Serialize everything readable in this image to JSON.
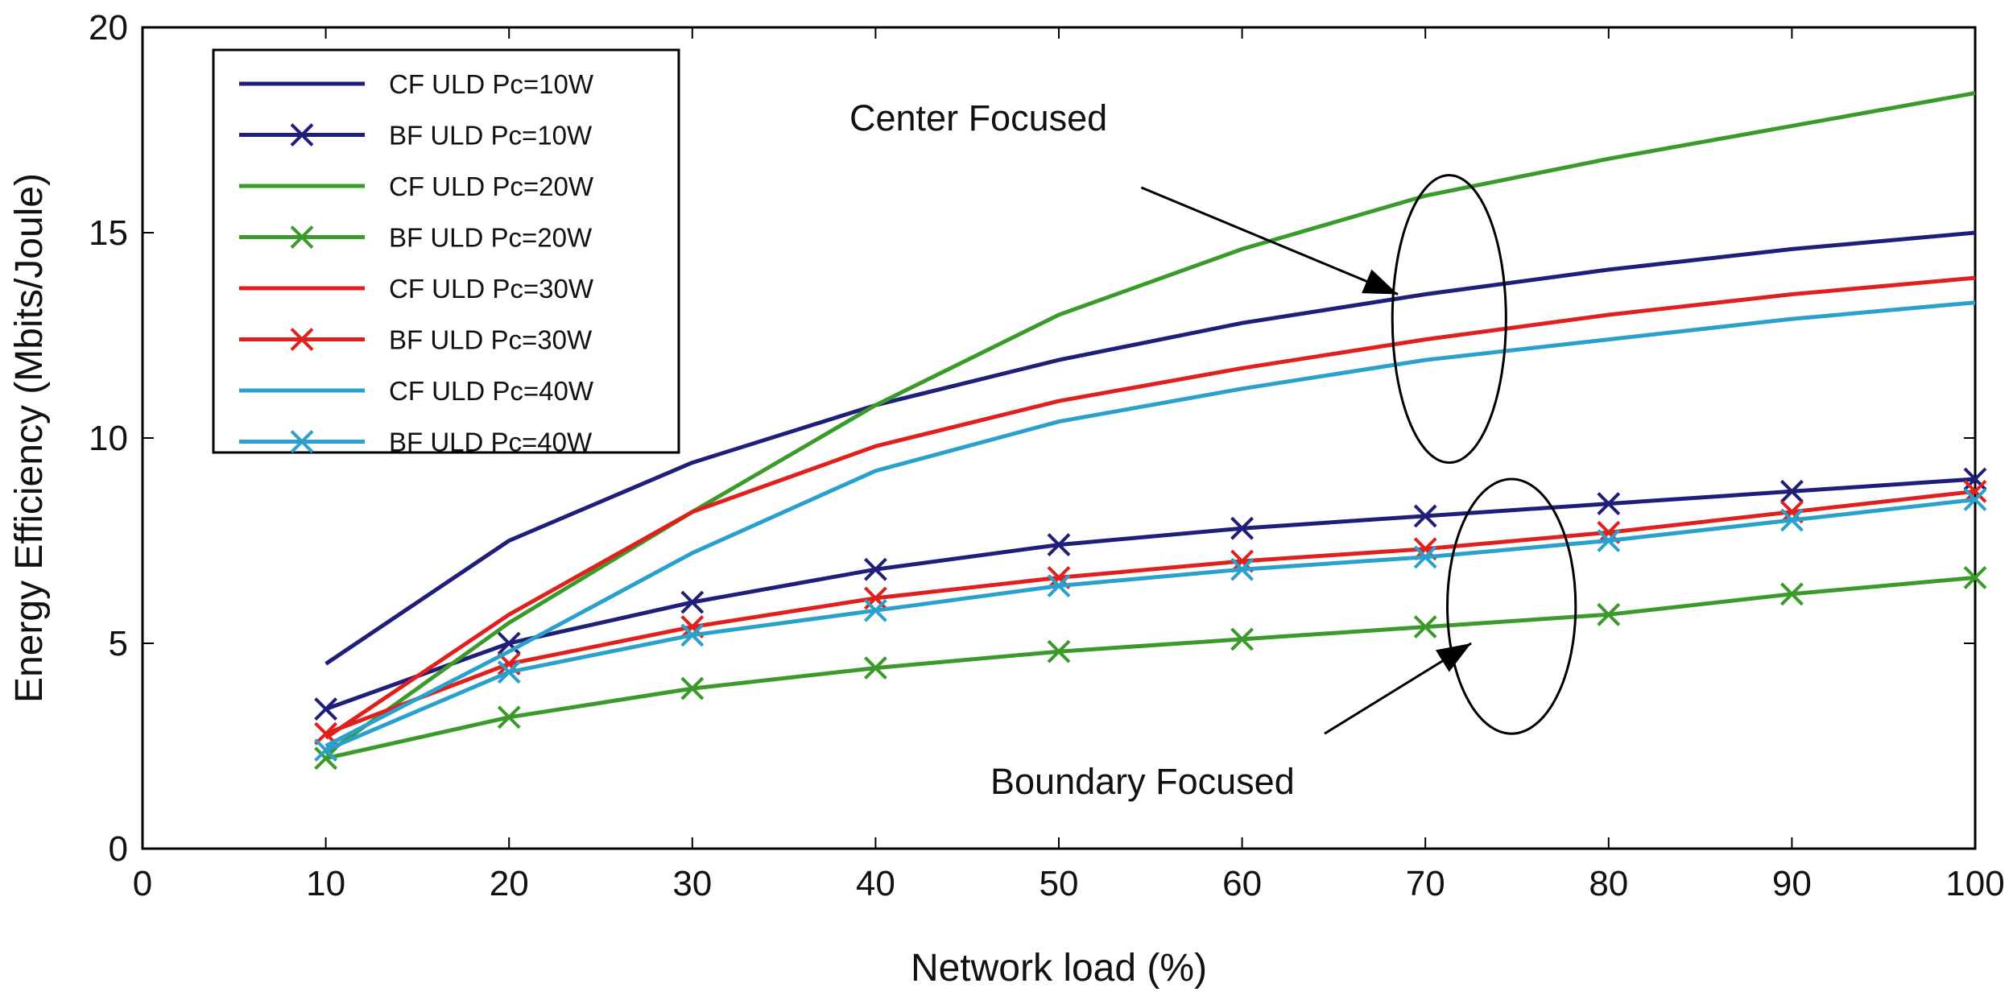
{
  "chart_data": {
    "type": "line",
    "xlabel": "Network load (%)",
    "ylabel": "Energy Efficiency (Mbits/Joule)",
    "xlim": [
      0,
      100
    ],
    "ylim": [
      0,
      20
    ],
    "xticks": [
      0,
      10,
      20,
      30,
      40,
      50,
      60,
      70,
      80,
      90,
      100
    ],
    "yticks": [
      0,
      5,
      10,
      15,
      20
    ],
    "x": [
      10,
      20,
      30,
      40,
      50,
      60,
      70,
      80,
      90,
      100
    ],
    "legend_position": "top-left",
    "series": [
      {
        "name": "CF ULD Pc=10W",
        "color": "#1f1f7a",
        "marker": "none",
        "values": [
          4.5,
          7.5,
          9.4,
          10.8,
          11.9,
          12.8,
          13.5,
          14.1,
          14.6,
          15.0
        ]
      },
      {
        "name": "BF ULD Pc=10W",
        "color": "#1f1f7a",
        "marker": "x",
        "values": [
          3.4,
          5.0,
          6.0,
          6.8,
          7.4,
          7.8,
          8.1,
          8.4,
          8.7,
          9.0
        ]
      },
      {
        "name": "CF ULD Pc=20W",
        "color": "#3a9a2a",
        "marker": "none",
        "values": [
          2.3,
          5.5,
          8.2,
          10.8,
          13.0,
          14.6,
          15.9,
          16.8,
          17.6,
          18.4
        ]
      },
      {
        "name": "BF ULD Pc=20W",
        "color": "#3a9a2a",
        "marker": "x",
        "values": [
          2.2,
          3.2,
          3.9,
          4.4,
          4.8,
          5.1,
          5.4,
          5.7,
          6.2,
          6.6
        ]
      },
      {
        "name": "CF ULD Pc=30W",
        "color": "#e0201c",
        "marker": "none",
        "values": [
          2.7,
          5.7,
          8.2,
          9.8,
          10.9,
          11.7,
          12.4,
          13.0,
          13.5,
          13.9
        ]
      },
      {
        "name": "BF ULD Pc=30W",
        "color": "#e0201c",
        "marker": "x",
        "values": [
          2.8,
          4.5,
          5.4,
          6.1,
          6.6,
          7.0,
          7.3,
          7.7,
          8.2,
          8.7
        ]
      },
      {
        "name": "CF ULD Pc=40W",
        "color": "#2aa0cc",
        "marker": "none",
        "values": [
          2.5,
          4.8,
          7.2,
          9.2,
          10.4,
          11.2,
          11.9,
          12.4,
          12.9,
          13.3
        ]
      },
      {
        "name": "BF ULD Pc=40W",
        "color": "#2aa0cc",
        "marker": "x",
        "values": [
          2.4,
          4.3,
          5.2,
          5.8,
          6.4,
          6.8,
          7.1,
          7.5,
          8.0,
          8.5
        ]
      }
    ],
    "annotations": [
      {
        "text": "Center Focused",
        "arrow_to": [
          68.5,
          13.5
        ],
        "arrow_from": [
          54.5,
          16.1
        ],
        "ellipse_center": [
          71.3,
          12.9
        ],
        "ellipse_radius": [
          3.1,
          3.5
        ]
      },
      {
        "text": "Boundary Focused",
        "arrow_to": [
          72.5,
          5.0
        ],
        "arrow_from": [
          64.5,
          2.8
        ],
        "ellipse_center": [
          74.7,
          5.9
        ],
        "ellipse_radius": [
          3.5,
          3.1
        ]
      }
    ]
  }
}
